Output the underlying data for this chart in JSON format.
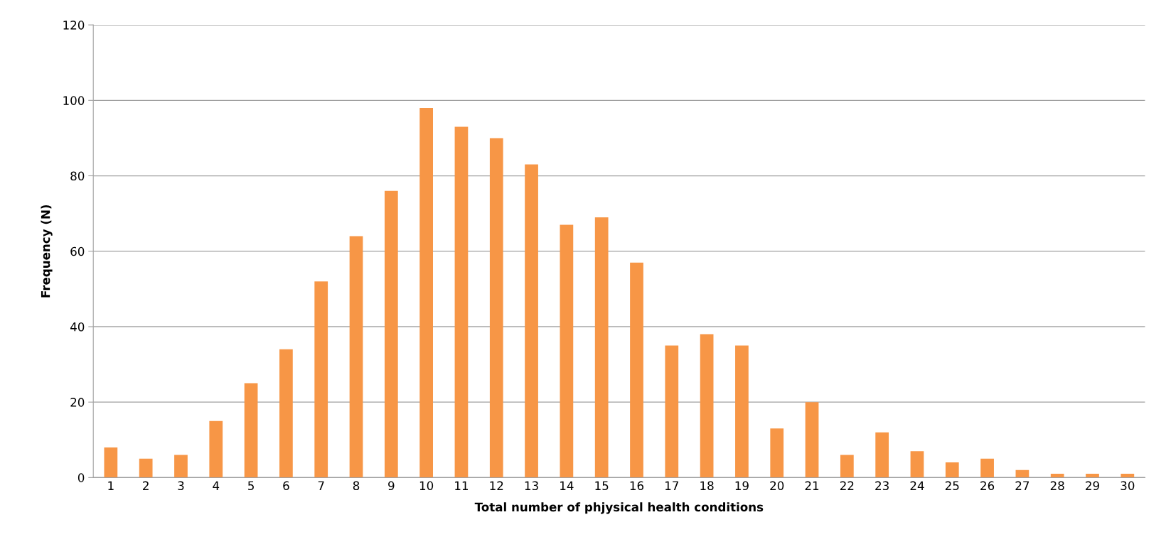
{
  "chart_data": {
    "type": "bar",
    "xlabel": "Total number of phjysical health conditions",
    "ylabel": "Frequency (N)",
    "categories": [
      "1",
      "2",
      "3",
      "4",
      "5",
      "6",
      "7",
      "8",
      "9",
      "10",
      "11",
      "12",
      "13",
      "14",
      "15",
      "16",
      "17",
      "18",
      "19",
      "20",
      "21",
      "22",
      "23",
      "24",
      "25",
      "26",
      "27",
      "28",
      "29",
      "30"
    ],
    "values": [
      8,
      5,
      6,
      15,
      25,
      34,
      52,
      64,
      76,
      98,
      93,
      90,
      83,
      67,
      69,
      57,
      35,
      38,
      35,
      13,
      20,
      6,
      12,
      7,
      4,
      5,
      2,
      1,
      1,
      1
    ],
    "color": "#f79646",
    "ylim": [
      0,
      120
    ],
    "yticks": [
      0,
      20,
      40,
      60,
      80,
      100,
      120
    ],
    "grid": "y"
  }
}
